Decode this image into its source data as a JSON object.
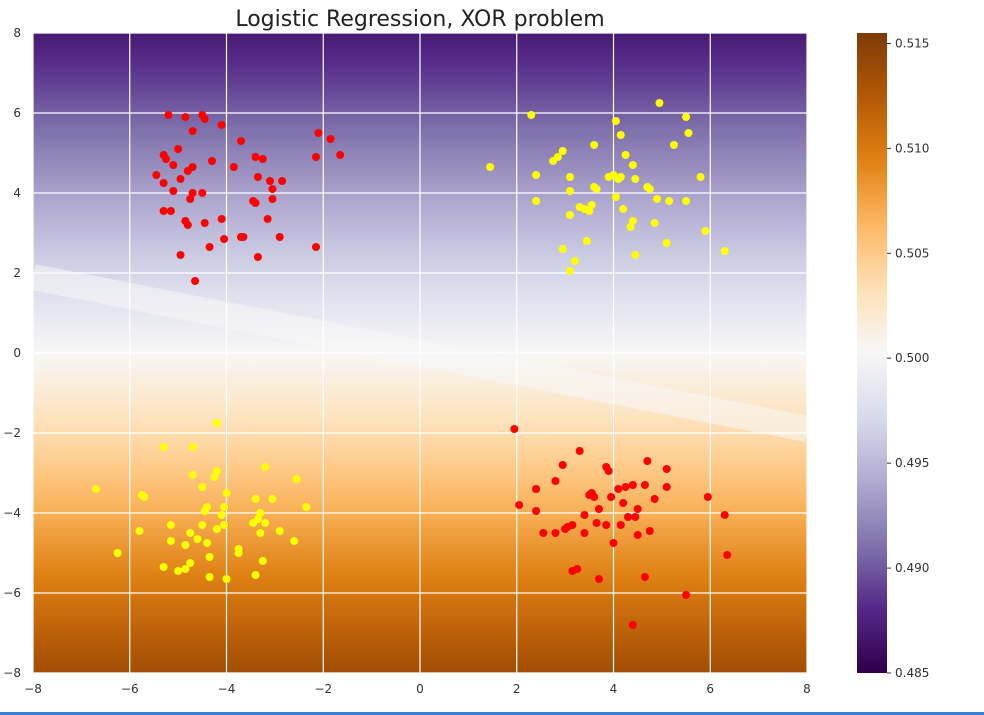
{
  "chart_data": {
    "type": "scatter",
    "title": "Logistic Regression, XOR problem",
    "xlabel": "",
    "ylabel": "",
    "xlim": [
      -8,
      8
    ],
    "ylim": [
      -8,
      8
    ],
    "x_ticks": [
      -8,
      -6,
      -4,
      -2,
      0,
      2,
      4,
      6,
      8
    ],
    "y_ticks": [
      -8,
      -6,
      -4,
      -2,
      0,
      2,
      4,
      6,
      8
    ],
    "x_tick_labels": [
      "−8",
      "−6",
      "−4",
      "−2",
      "0",
      "2",
      "4",
      "6",
      "8"
    ],
    "y_tick_labels": [
      "−8",
      "−6",
      "−4",
      "−2",
      "0",
      "2",
      "4",
      "6",
      "8"
    ],
    "grid": true,
    "background": {
      "type": "probability-field",
      "colormap": "PuOr",
      "decision_line": {
        "x": [
          -8,
          8
        ],
        "y": [
          1.9,
          -1.9
        ]
      },
      "prob_at_top": 0.487,
      "prob_at_bottom": 0.5135
    },
    "colorbar": {
      "min": 0.485,
      "max": 0.5155,
      "ticks": [
        0.485,
        0.49,
        0.495,
        0.5,
        0.505,
        0.51,
        0.515
      ],
      "tick_labels": [
        "0.485",
        "0.490",
        "0.495",
        "0.500",
        "0.505",
        "0.510",
        "0.515"
      ],
      "colors": [
        "#2d004b",
        "#542788",
        "#8073ac",
        "#b2abd2",
        "#d8daeb",
        "#f7f7f7",
        "#fee0b6",
        "#fdb863",
        "#e08214",
        "#b35806",
        "#7f3b08"
      ]
    },
    "series": [
      {
        "name": "class_red",
        "color": "#ff0000",
        "points": [
          [
            -5.2,
            5.95
          ],
          [
            -4.85,
            5.9
          ],
          [
            -4.5,
            5.95
          ],
          [
            -4.45,
            5.85
          ],
          [
            -4.7,
            5.55
          ],
          [
            -4.1,
            5.7
          ],
          [
            -5.0,
            5.1
          ],
          [
            -3.7,
            5.3
          ],
          [
            -5.3,
            4.95
          ],
          [
            -5.25,
            4.85
          ],
          [
            -5.1,
            4.7
          ],
          [
            -4.7,
            4.65
          ],
          [
            -4.8,
            4.55
          ],
          [
            -4.3,
            4.8
          ],
          [
            -3.4,
            4.9
          ],
          [
            -3.25,
            4.85
          ],
          [
            -3.85,
            4.65
          ],
          [
            -5.45,
            4.45
          ],
          [
            -5.3,
            4.25
          ],
          [
            -4.95,
            4.35
          ],
          [
            -3.35,
            4.4
          ],
          [
            -3.1,
            4.3
          ],
          [
            -2.85,
            4.3
          ],
          [
            -5.1,
            4.05
          ],
          [
            -4.7,
            4.0
          ],
          [
            -4.5,
            4.0
          ],
          [
            -3.05,
            4.1
          ],
          [
            -4.75,
            3.85
          ],
          [
            -3.45,
            3.8
          ],
          [
            -3.4,
            3.75
          ],
          [
            -3.05,
            3.85
          ],
          [
            -5.3,
            3.55
          ],
          [
            -5.15,
            3.55
          ],
          [
            -4.85,
            3.3
          ],
          [
            -4.8,
            3.2
          ],
          [
            -4.45,
            3.25
          ],
          [
            -4.1,
            3.35
          ],
          [
            -3.15,
            3.35
          ],
          [
            -4.05,
            2.85
          ],
          [
            -3.7,
            2.9
          ],
          [
            -3.65,
            2.9
          ],
          [
            -2.9,
            2.9
          ],
          [
            -4.35,
            2.65
          ],
          [
            -4.95,
            2.45
          ],
          [
            -3.35,
            2.4
          ],
          [
            -2.15,
            2.65
          ],
          [
            -4.65,
            1.8
          ],
          [
            -2.1,
            5.5
          ],
          [
            -1.85,
            5.35
          ],
          [
            -1.65,
            4.95
          ],
          [
            -2.15,
            4.9
          ],
          [
            1.95,
            -1.9
          ],
          [
            3.3,
            -2.45
          ],
          [
            2.95,
            -2.8
          ],
          [
            3.85,
            -2.85
          ],
          [
            4.7,
            -2.7
          ],
          [
            5.1,
            -2.9
          ],
          [
            3.9,
            -2.95
          ],
          [
            2.8,
            -3.2
          ],
          [
            2.4,
            -3.4
          ],
          [
            3.55,
            -3.5
          ],
          [
            3.5,
            -3.55
          ],
          [
            3.6,
            -3.6
          ],
          [
            3.95,
            -3.6
          ],
          [
            4.1,
            -3.4
          ],
          [
            4.25,
            -3.35
          ],
          [
            4.4,
            -3.3
          ],
          [
            4.65,
            -3.3
          ],
          [
            5.1,
            -3.35
          ],
          [
            4.85,
            -3.65
          ],
          [
            5.95,
            -3.6
          ],
          [
            2.05,
            -3.8
          ],
          [
            2.4,
            -3.95
          ],
          [
            3.7,
            -3.9
          ],
          [
            4.2,
            -3.75
          ],
          [
            4.5,
            -3.9
          ],
          [
            3.4,
            -4.05
          ],
          [
            4.3,
            -4.1
          ],
          [
            4.45,
            -4.1
          ],
          [
            6.3,
            -4.05
          ],
          [
            3.15,
            -4.3
          ],
          [
            3.65,
            -4.25
          ],
          [
            3.85,
            -4.3
          ],
          [
            4.15,
            -4.3
          ],
          [
            3.0,
            -4.4
          ],
          [
            3.05,
            -4.35
          ],
          [
            2.55,
            -4.5
          ],
          [
            2.8,
            -4.5
          ],
          [
            3.4,
            -4.5
          ],
          [
            4.75,
            -4.45
          ],
          [
            4.5,
            -4.55
          ],
          [
            4.0,
            -4.75
          ],
          [
            6.35,
            -5.05
          ],
          [
            3.25,
            -5.4
          ],
          [
            3.15,
            -5.45
          ],
          [
            3.7,
            -5.65
          ],
          [
            4.65,
            -5.6
          ],
          [
            5.5,
            -6.05
          ],
          [
            4.4,
            -6.8
          ]
        ]
      },
      {
        "name": "class_yellow",
        "color": "#ffff00",
        "points": [
          [
            2.3,
            5.95
          ],
          [
            4.95,
            6.25
          ],
          [
            5.5,
            5.9
          ],
          [
            4.05,
            5.8
          ],
          [
            4.15,
            5.45
          ],
          [
            5.55,
            5.5
          ],
          [
            3.6,
            5.2
          ],
          [
            5.25,
            5.2
          ],
          [
            2.95,
            5.05
          ],
          [
            2.85,
            4.9
          ],
          [
            2.75,
            4.8
          ],
          [
            4.25,
            4.95
          ],
          [
            4.4,
            4.7
          ],
          [
            1.45,
            4.65
          ],
          [
            2.4,
            4.45
          ],
          [
            3.1,
            4.4
          ],
          [
            3.9,
            4.4
          ],
          [
            4.0,
            4.45
          ],
          [
            4.15,
            4.4
          ],
          [
            4.1,
            4.35
          ],
          [
            4.45,
            4.35
          ],
          [
            5.8,
            4.4
          ],
          [
            3.6,
            4.15
          ],
          [
            3.65,
            4.1
          ],
          [
            4.7,
            4.15
          ],
          [
            4.75,
            4.1
          ],
          [
            3.1,
            4.05
          ],
          [
            4.05,
            3.9
          ],
          [
            4.9,
            3.85
          ],
          [
            5.15,
            3.8
          ],
          [
            5.5,
            3.8
          ],
          [
            2.4,
            3.8
          ],
          [
            3.55,
            3.7
          ],
          [
            3.3,
            3.65
          ],
          [
            3.4,
            3.6
          ],
          [
            3.5,
            3.55
          ],
          [
            4.2,
            3.6
          ],
          [
            3.1,
            3.45
          ],
          [
            4.4,
            3.3
          ],
          [
            4.35,
            3.15
          ],
          [
            4.85,
            3.25
          ],
          [
            5.9,
            3.05
          ],
          [
            3.45,
            2.8
          ],
          [
            5.1,
            2.75
          ],
          [
            2.95,
            2.6
          ],
          [
            6.3,
            2.55
          ],
          [
            4.45,
            2.45
          ],
          [
            3.2,
            2.3
          ],
          [
            3.1,
            2.05
          ],
          [
            -4.2,
            -1.75
          ],
          [
            -5.3,
            -2.35
          ],
          [
            -4.7,
            -2.35
          ],
          [
            -3.2,
            -2.85
          ],
          [
            -4.7,
            -3.05
          ],
          [
            -4.2,
            -2.95
          ],
          [
            -4.25,
            -3.1
          ],
          [
            -2.55,
            -3.15
          ],
          [
            -6.7,
            -3.4
          ],
          [
            -4.5,
            -3.35
          ],
          [
            -5.75,
            -3.55
          ],
          [
            -5.7,
            -3.6
          ],
          [
            -4.0,
            -3.5
          ],
          [
            -3.4,
            -3.65
          ],
          [
            -3.05,
            -3.65
          ],
          [
            -4.4,
            -3.85
          ],
          [
            -4.05,
            -3.85
          ],
          [
            -2.35,
            -3.85
          ],
          [
            -4.45,
            -3.95
          ],
          [
            -3.3,
            -4.0
          ],
          [
            -4.1,
            -4.05
          ],
          [
            -3.35,
            -4.15
          ],
          [
            -3.45,
            -4.25
          ],
          [
            -3.2,
            -4.25
          ],
          [
            -4.05,
            -4.3
          ],
          [
            -4.5,
            -4.3
          ],
          [
            -5.15,
            -4.3
          ],
          [
            -5.8,
            -4.45
          ],
          [
            -4.75,
            -4.5
          ],
          [
            -3.3,
            -4.5
          ],
          [
            -2.9,
            -4.45
          ],
          [
            -4.2,
            -4.4
          ],
          [
            -5.15,
            -4.7
          ],
          [
            -4.6,
            -4.65
          ],
          [
            -4.4,
            -4.75
          ],
          [
            -2.6,
            -4.7
          ],
          [
            -4.85,
            -4.8
          ],
          [
            -3.75,
            -4.9
          ],
          [
            -3.75,
            -5.0
          ],
          [
            -6.25,
            -5.0
          ],
          [
            -4.35,
            -5.1
          ],
          [
            -4.75,
            -5.25
          ],
          [
            -3.25,
            -5.2
          ],
          [
            -5.3,
            -5.35
          ],
          [
            -5.0,
            -5.45
          ],
          [
            -4.85,
            -5.4
          ],
          [
            -3.4,
            -5.55
          ],
          [
            -4.35,
            -5.6
          ],
          [
            -4.0,
            -5.65
          ]
        ]
      }
    ]
  }
}
